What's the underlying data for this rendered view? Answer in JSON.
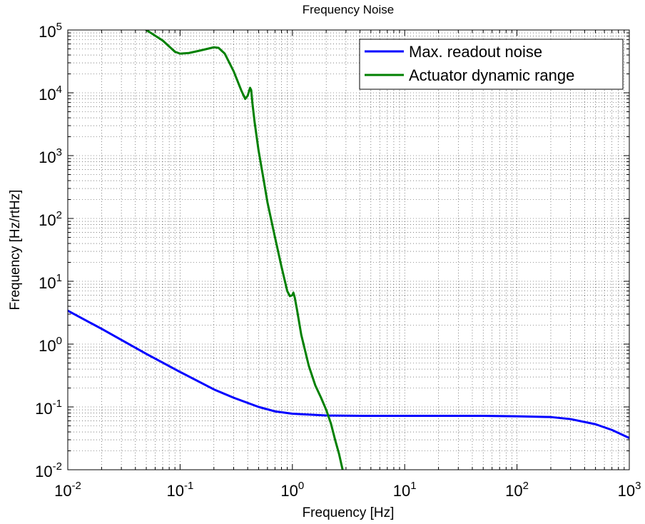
{
  "chart_data": {
    "type": "line",
    "title": "Frequency Noise",
    "xlabel": "Frequency [Hz]",
    "ylabel": "Frequency [Hz/rtHz]",
    "xscale": "log",
    "yscale": "log",
    "xlim": [
      0.01,
      1000
    ],
    "ylim": [
      0.01,
      100000
    ],
    "grid": true,
    "legend_position": "top-right",
    "x_tick_labels": [
      {
        "base": "10",
        "exp": "-2"
      },
      {
        "base": "10",
        "exp": "-1"
      },
      {
        "base": "10",
        "exp": "0"
      },
      {
        "base": "10",
        "exp": "1"
      },
      {
        "base": "10",
        "exp": "2"
      },
      {
        "base": "10",
        "exp": "3"
      }
    ],
    "y_tick_labels": [
      {
        "base": "10",
        "exp": "-2"
      },
      {
        "base": "10",
        "exp": "-1"
      },
      {
        "base": "10",
        "exp": "0"
      },
      {
        "base": "10",
        "exp": "1"
      },
      {
        "base": "10",
        "exp": "2"
      },
      {
        "base": "10",
        "exp": "3"
      },
      {
        "base": "10",
        "exp": "4"
      },
      {
        "base": "10",
        "exp": "5"
      }
    ],
    "series": [
      {
        "name": "Max. readout noise",
        "color": "#0000ff",
        "x": [
          0.01,
          0.02,
          0.05,
          0.1,
          0.2,
          0.3,
          0.5,
          0.7,
          1,
          2,
          5,
          10,
          20,
          50,
          100,
          200,
          300,
          500,
          700,
          1000
        ],
        "y": [
          3.4,
          1.75,
          0.7,
          0.36,
          0.19,
          0.14,
          0.1,
          0.085,
          0.078,
          0.073,
          0.072,
          0.072,
          0.072,
          0.072,
          0.071,
          0.069,
          0.064,
          0.053,
          0.043,
          0.032
        ]
      },
      {
        "name": "Actuator dynamic range",
        "color": "#008000",
        "x": [
          0.05,
          0.07,
          0.09,
          0.1,
          0.12,
          0.15,
          0.2,
          0.22,
          0.25,
          0.3,
          0.35,
          0.38,
          0.4,
          0.42,
          0.43,
          0.44,
          0.46,
          0.5,
          0.55,
          0.6,
          0.7,
          0.8,
          0.9,
          0.95,
          1.0,
          1.02,
          1.05,
          1.1,
          1.2,
          1.4,
          1.6,
          1.8,
          2.0,
          2.2,
          2.4,
          2.6,
          2.8
        ],
        "y": [
          100000,
          68000,
          45000,
          42000,
          43000,
          47000,
          53000,
          52000,
          42000,
          22000,
          11000,
          8000,
          9000,
          12000,
          11000,
          7000,
          3500,
          1200,
          450,
          180,
          50,
          17,
          7,
          5.8,
          6,
          6.6,
          5.5,
          3.5,
          1.4,
          0.45,
          0.22,
          0.14,
          0.09,
          0.055,
          0.03,
          0.018,
          0.01
        ]
      }
    ]
  }
}
